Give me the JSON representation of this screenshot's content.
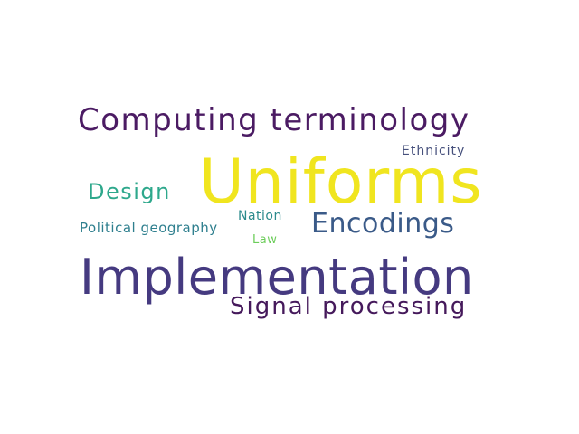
{
  "word_cloud": {
    "words": [
      {
        "text": "Uniforms",
        "color": "#f0e51f"
      },
      {
        "text": "Implementation",
        "color": "#453a80"
      },
      {
        "text": "Computing terminology",
        "color": "#4b1b63"
      },
      {
        "text": "Signal processing",
        "color": "#45195b"
      },
      {
        "text": "Encodings",
        "color": "#3a5a88"
      },
      {
        "text": "Design",
        "color": "#2ea88c"
      },
      {
        "text": "Political geography",
        "color": "#2e7f8e"
      },
      {
        "text": "Ethnicity",
        "color": "#46507c"
      },
      {
        "text": "Nation",
        "color": "#2b8a8c"
      },
      {
        "text": "Law",
        "color": "#6ccd5a"
      }
    ]
  }
}
